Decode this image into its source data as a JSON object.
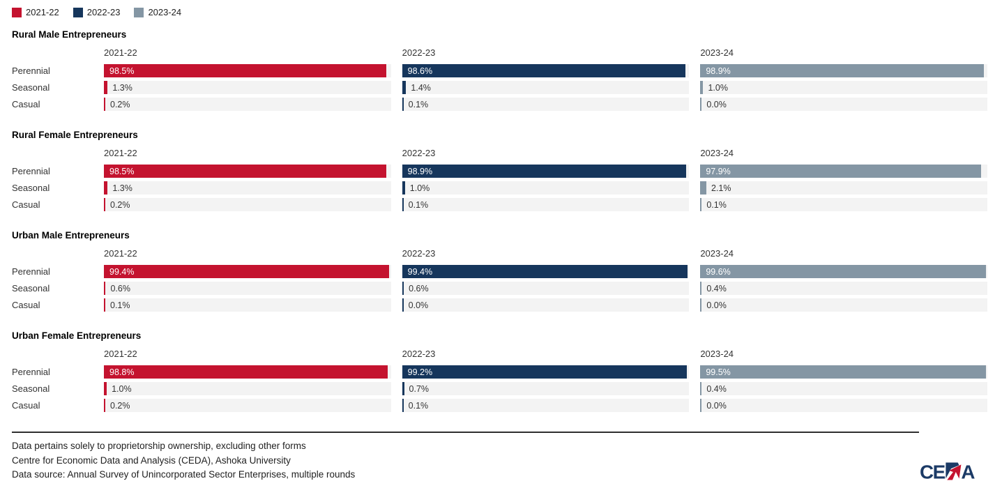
{
  "chart_data": {
    "type": "bar",
    "orientation": "horizontal",
    "unit": "%",
    "xlim": [
      0,
      100
    ],
    "legend": [
      {
        "label": "2021-22",
        "color": "#c4132f"
      },
      {
        "label": "2022-23",
        "color": "#16365c"
      },
      {
        "label": "2023-24",
        "color": "#8496a4"
      }
    ],
    "categories": [
      "Perennial",
      "Seasonal",
      "Casual"
    ],
    "track_color": "#f3f3f3",
    "groups": [
      {
        "title": "Rural Male Entrepreneurs",
        "series": [
          {
            "name": "2021-22",
            "values": [
              98.5,
              1.3,
              0.2
            ]
          },
          {
            "name": "2022-23",
            "values": [
              98.6,
              1.4,
              0.1
            ]
          },
          {
            "name": "2023-24",
            "values": [
              98.9,
              1.0,
              0.0
            ]
          }
        ]
      },
      {
        "title": "Rural Female Entrepreneurs",
        "series": [
          {
            "name": "2021-22",
            "values": [
              98.5,
              1.3,
              0.2
            ]
          },
          {
            "name": "2022-23",
            "values": [
              98.9,
              1.0,
              0.1
            ]
          },
          {
            "name": "2023-24",
            "values": [
              97.9,
              2.1,
              0.1
            ]
          }
        ]
      },
      {
        "title": "Urban Male Entrepreneurs",
        "series": [
          {
            "name": "2021-22",
            "values": [
              99.4,
              0.6,
              0.1
            ]
          },
          {
            "name": "2022-23",
            "values": [
              99.4,
              0.6,
              0.0
            ]
          },
          {
            "name": "2023-24",
            "values": [
              99.6,
              0.4,
              0.0
            ]
          }
        ]
      },
      {
        "title": "Urban Female Entrepreneurs",
        "series": [
          {
            "name": "2021-22",
            "values": [
              98.8,
              1.0,
              0.2
            ]
          },
          {
            "name": "2022-23",
            "values": [
              99.2,
              0.7,
              0.1
            ]
          },
          {
            "name": "2023-24",
            "values": [
              99.5,
              0.4,
              0.0
            ]
          }
        ]
      }
    ]
  },
  "footer": {
    "notes": [
      "Data pertains solely to proprietorship ownership, excluding other forms",
      "Centre for Economic Data and Analysis (CEDA), Ashoka University",
      "Data source: Annual Survey of Unincorporated Sector Enterprises, multiple rounds"
    ],
    "logo_text": "CEDA",
    "logo_navy": "#1b3a66",
    "logo_red": "#c4132f"
  }
}
